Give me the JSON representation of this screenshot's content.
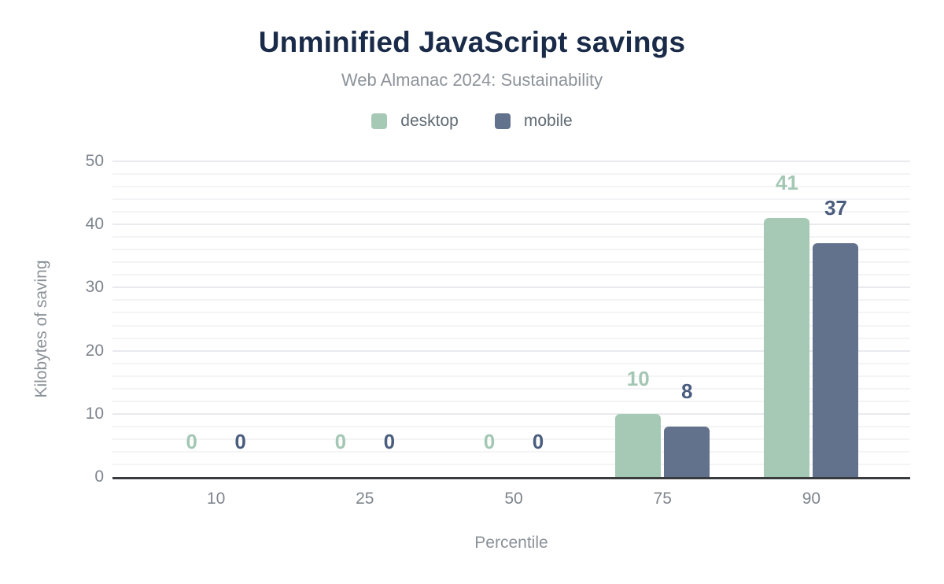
{
  "title": "Unminified JavaScript savings",
  "subtitle": "Web Almanac 2024: Sustainability",
  "legend": [
    {
      "label": "desktop",
      "color": "#a6c9b5"
    },
    {
      "label": "mobile",
      "color": "#62718c"
    }
  ],
  "x_axis": {
    "title": "Percentile"
  },
  "y_axis": {
    "title": "Kilobytes of saving"
  },
  "chart_data": {
    "type": "bar",
    "title": "Unminified JavaScript savings",
    "subtitle": "Web Almanac 2024: Sustainability",
    "categories": [
      "10",
      "25",
      "50",
      "75",
      "90"
    ],
    "series": [
      {
        "name": "desktop",
        "values": [
          0,
          0,
          0,
          10,
          41
        ],
        "color": "#a6c9b5",
        "label_color": "#a3c7b4"
      },
      {
        "name": "mobile",
        "values": [
          0,
          0,
          0,
          8,
          37
        ],
        "color": "#62718c",
        "label_color": "#4a5d7e"
      }
    ],
    "xlabel": "Percentile",
    "ylabel": "Kilobytes of saving",
    "ylim": [
      0,
      50
    ],
    "yticks": [
      0,
      10,
      20,
      30,
      40,
      50
    ],
    "minor_grid_step": 2,
    "grid": "horizontal-major-and-minor",
    "legend_position": "top",
    "value_labels": "above-bars"
  },
  "colors": {
    "title": "#1a2b49",
    "subtitle": "#8d939a",
    "tick_label": "#7e858d",
    "axis_title": "#8a9198",
    "axis_line": "#3a3b3e",
    "major_gridline": "#e9eaee",
    "minor_gridline": "#f4f4f6",
    "background": "#ffffff"
  }
}
